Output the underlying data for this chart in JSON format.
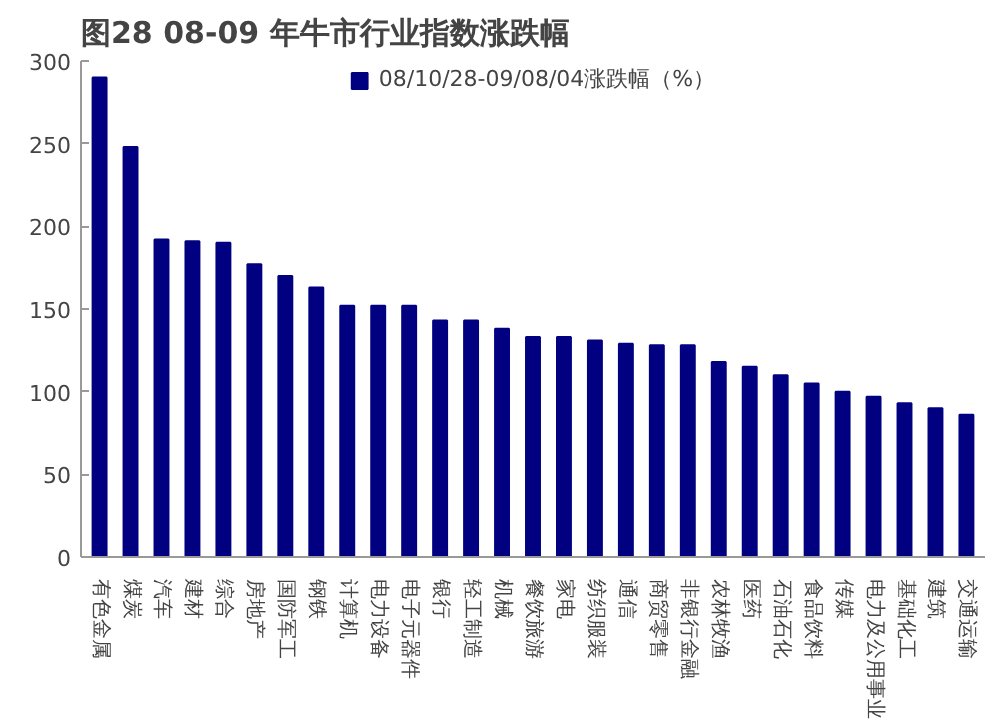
{
  "chart_data": {
    "type": "bar",
    "title": "图28 08-09 年牛市行业指数涨跌幅",
    "categories": [
      "有色金属",
      "煤炭",
      "汽车",
      "建材",
      "综合",
      "房地产",
      "国防军工",
      "钢铁",
      "计算机",
      "电力设备",
      "电子元器件",
      "银行",
      "轻工制造",
      "机械",
      "餐饮旅游",
      "家电",
      "纺织服装",
      "通信",
      "商贸零售",
      "非银行金融",
      "农林牧渔",
      "医药",
      "石油石化",
      "食品饮料",
      "传媒",
      "电力及公用事业",
      "基础化工",
      "建筑",
      "交通运输"
    ],
    "series": [
      {
        "name": "08/10/28-09/08/04涨跌幅（%）",
        "color": "#000080",
        "values": [
          290,
          248,
          192,
          191,
          190,
          177,
          170,
          163,
          152,
          152,
          152,
          143,
          143,
          138,
          133,
          133,
          131,
          129,
          128,
          128,
          118,
          115,
          110,
          105,
          100,
          97,
          93,
          90,
          86
        ]
      }
    ],
    "ylim": [
      0,
      300
    ],
    "yticks": [
      0,
      50,
      100,
      150,
      200,
      250,
      300
    ],
    "grid": false,
    "legend": "top"
  }
}
